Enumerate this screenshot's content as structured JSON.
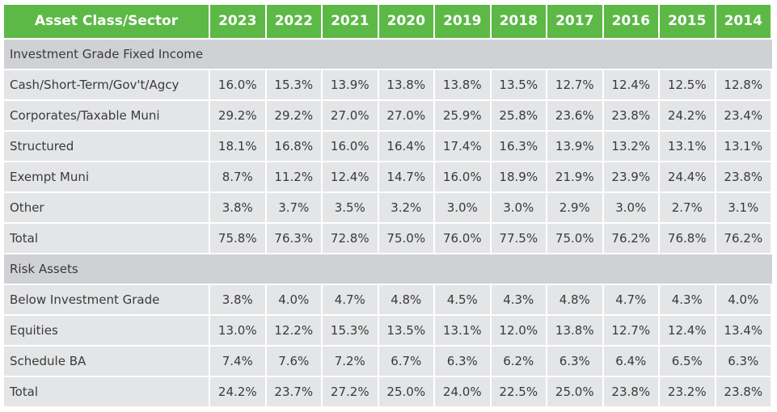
{
  "table": {
    "header": [
      "Asset Class/Sector",
      "2023",
      "2022",
      "2021",
      "2020",
      "2019",
      "2018",
      "2017",
      "2016",
      "2015",
      "2014"
    ],
    "sections": [
      {
        "title": "Investment Grade Fixed Income",
        "rows": [
          {
            "label": "Cash/Short-Term/Gov't/Agcy",
            "values": [
              "16.0%",
              "15.3%",
              "13.9%",
              "13.8%",
              "13.8%",
              "13.5%",
              "12.7%",
              "12.4%",
              "12.5%",
              "12.8%"
            ]
          },
          {
            "label": "Corporates/Taxable Muni",
            "values": [
              "29.2%",
              "29.2%",
              "27.0%",
              "27.0%",
              "25.9%",
              "25.8%",
              "23.6%",
              "23.8%",
              "24.2%",
              "23.4%"
            ]
          },
          {
            "label": "Structured",
            "values": [
              "18.1%",
              "16.8%",
              "16.0%",
              "16.4%",
              "17.4%",
              "16.3%",
              "13.9%",
              "13.2%",
              "13.1%",
              "13.1%"
            ]
          },
          {
            "label": "Exempt Muni",
            "values": [
              "8.7%",
              "11.2%",
              "12.4%",
              "14.7%",
              "16.0%",
              "18.9%",
              "21.9%",
              "23.9%",
              "24.4%",
              "23.8%"
            ]
          },
          {
            "label": "Other",
            "values": [
              "3.8%",
              "3.7%",
              "3.5%",
              "3.2%",
              "3.0%",
              "3.0%",
              "2.9%",
              "3.0%",
              "2.7%",
              "3.1%"
            ]
          }
        ],
        "total": {
          "label": "Total",
          "values": [
            "75.8%",
            "76.3%",
            "72.8%",
            "75.0%",
            "76.0%",
            "77.5%",
            "75.0%",
            "76.2%",
            "76.8%",
            "76.2%"
          ]
        }
      },
      {
        "title": "Risk Assets",
        "rows": [
          {
            "label": "Below Investment Grade",
            "values": [
              "3.8%",
              "4.0%",
              "4.7%",
              "4.8%",
              "4.5%",
              "4.3%",
              "4.8%",
              "4.7%",
              "4.3%",
              "4.0%"
            ]
          },
          {
            "label": "Equities",
            "values": [
              "13.0%",
              "12.2%",
              "15.3%",
              "13.5%",
              "13.1%",
              "12.0%",
              "13.8%",
              "12.7%",
              "12.4%",
              "13.4%"
            ]
          },
          {
            "label": "Schedule BA",
            "values": [
              "7.4%",
              "7.6%",
              "7.2%",
              "6.7%",
              "6.3%",
              "6.2%",
              "6.3%",
              "6.4%",
              "6.5%",
              "6.3%"
            ]
          }
        ],
        "total": {
          "label": "Total",
          "values": [
            "24.2%",
            "23.7%",
            "27.2%",
            "25.0%",
            "24.0%",
            "22.5%",
            "25.0%",
            "23.8%",
            "23.2%",
            "23.8%"
          ]
        }
      }
    ]
  }
}
